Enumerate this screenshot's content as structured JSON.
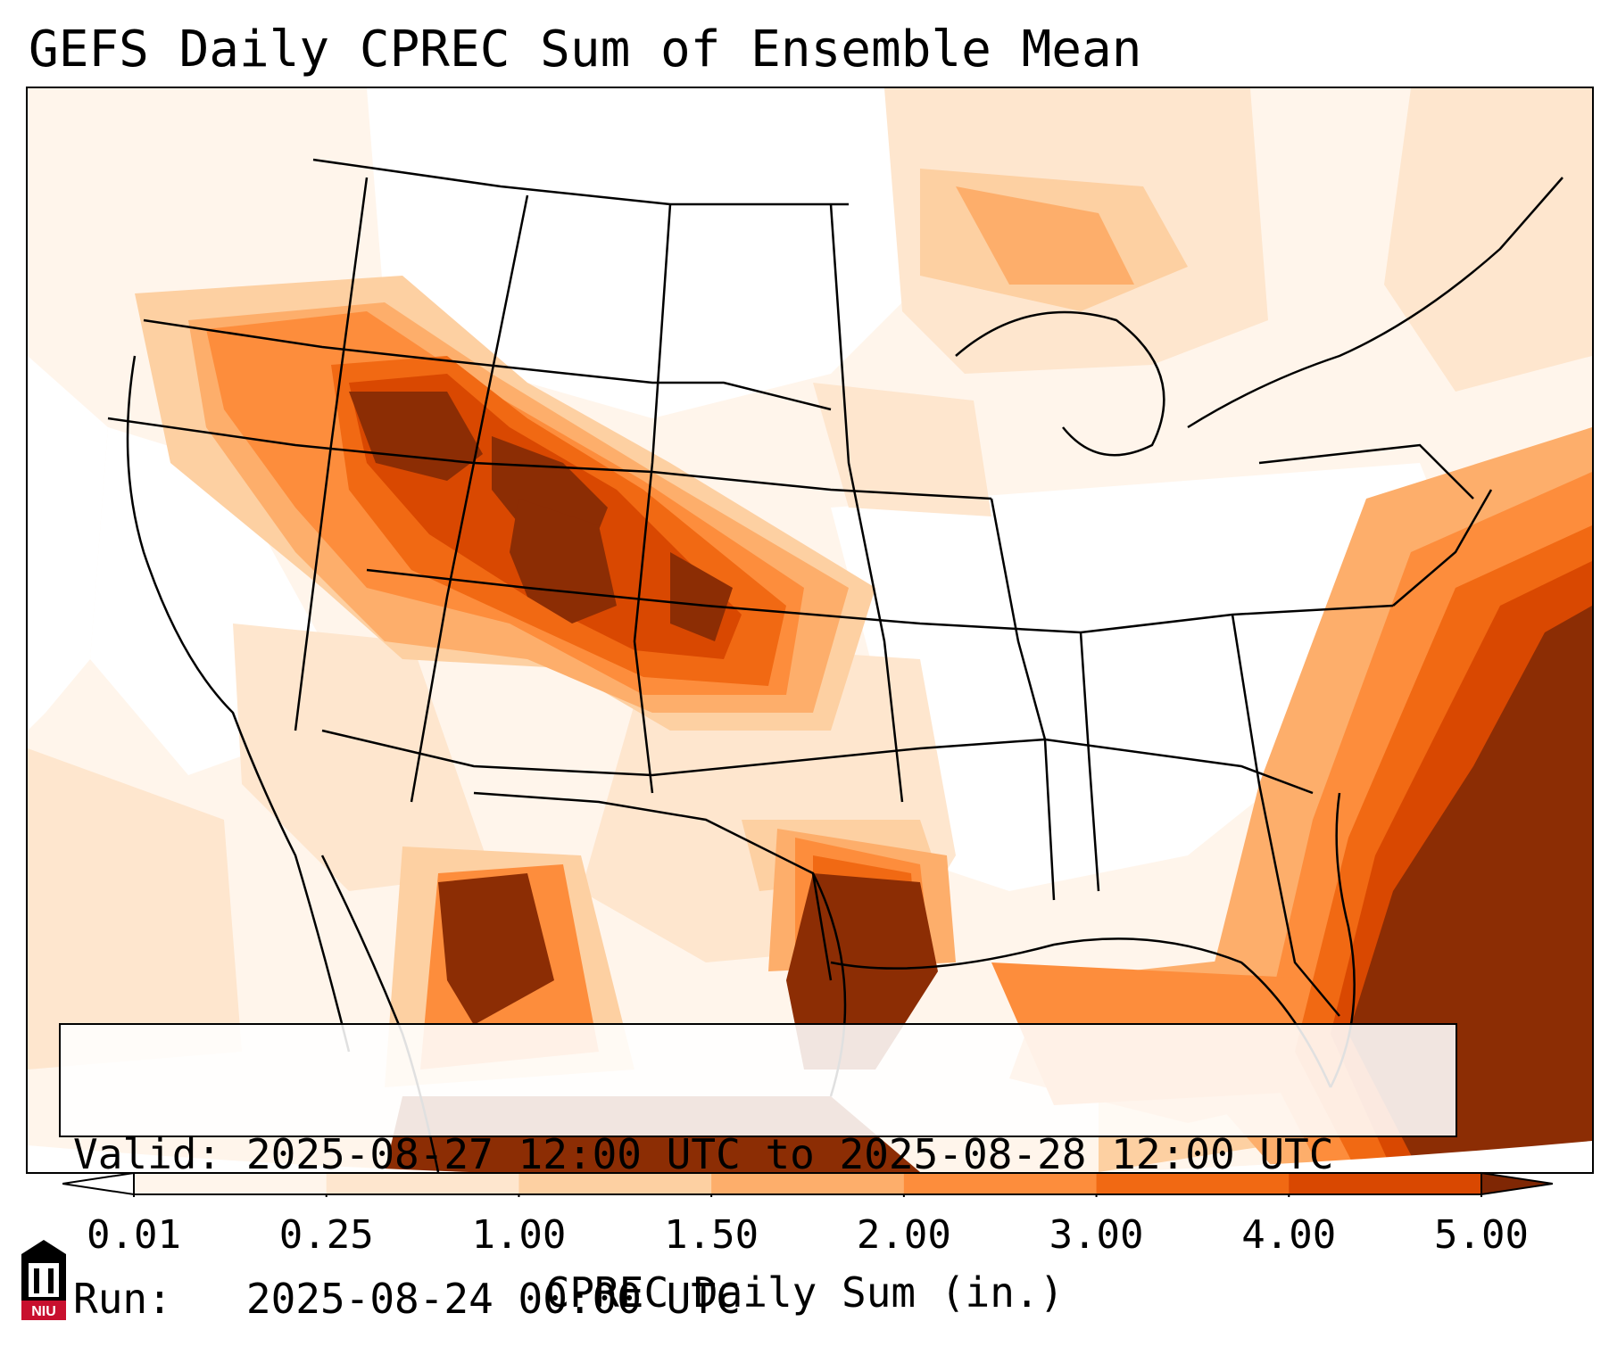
{
  "title": "GEFS Daily CPREC Sum of Ensemble Mean",
  "info": {
    "valid_label": "Valid:",
    "valid_value": "2025-08-27 12:00 UTC to 2025-08-28 12:00 UTC",
    "run_label": "Run:",
    "run_value": "2025-08-24 00:00 UTC"
  },
  "colorbar": {
    "label": "CPREC Daily Sum (in.)",
    "ticks": [
      "0.01",
      "0.25",
      "1.00",
      "1.50",
      "2.00",
      "3.00",
      "4.00",
      "5.00"
    ],
    "colors": [
      "#fff5eb",
      "#fee6ce",
      "#fdd0a2",
      "#fdae6b",
      "#fd8d3c",
      "#f16913",
      "#d94801",
      "#8c2d04"
    ],
    "under_color": "#ffffff",
    "over_color": "#7f2704"
  },
  "map": {
    "region": "Continental United States, southern Canada, northern Mexico, Gulf of Mexico",
    "max_regions": [
      "Idaho / western Montana",
      "Wyoming / Colorado",
      "Kansas",
      "Texas Gulf coast",
      "Atlantic offshore east of Carolinas and Florida",
      "Sierra Madre Occidental, Mexico"
    ]
  },
  "logo": {
    "name": "niu-logo",
    "text": "NIU",
    "color": "#c8102e"
  }
}
